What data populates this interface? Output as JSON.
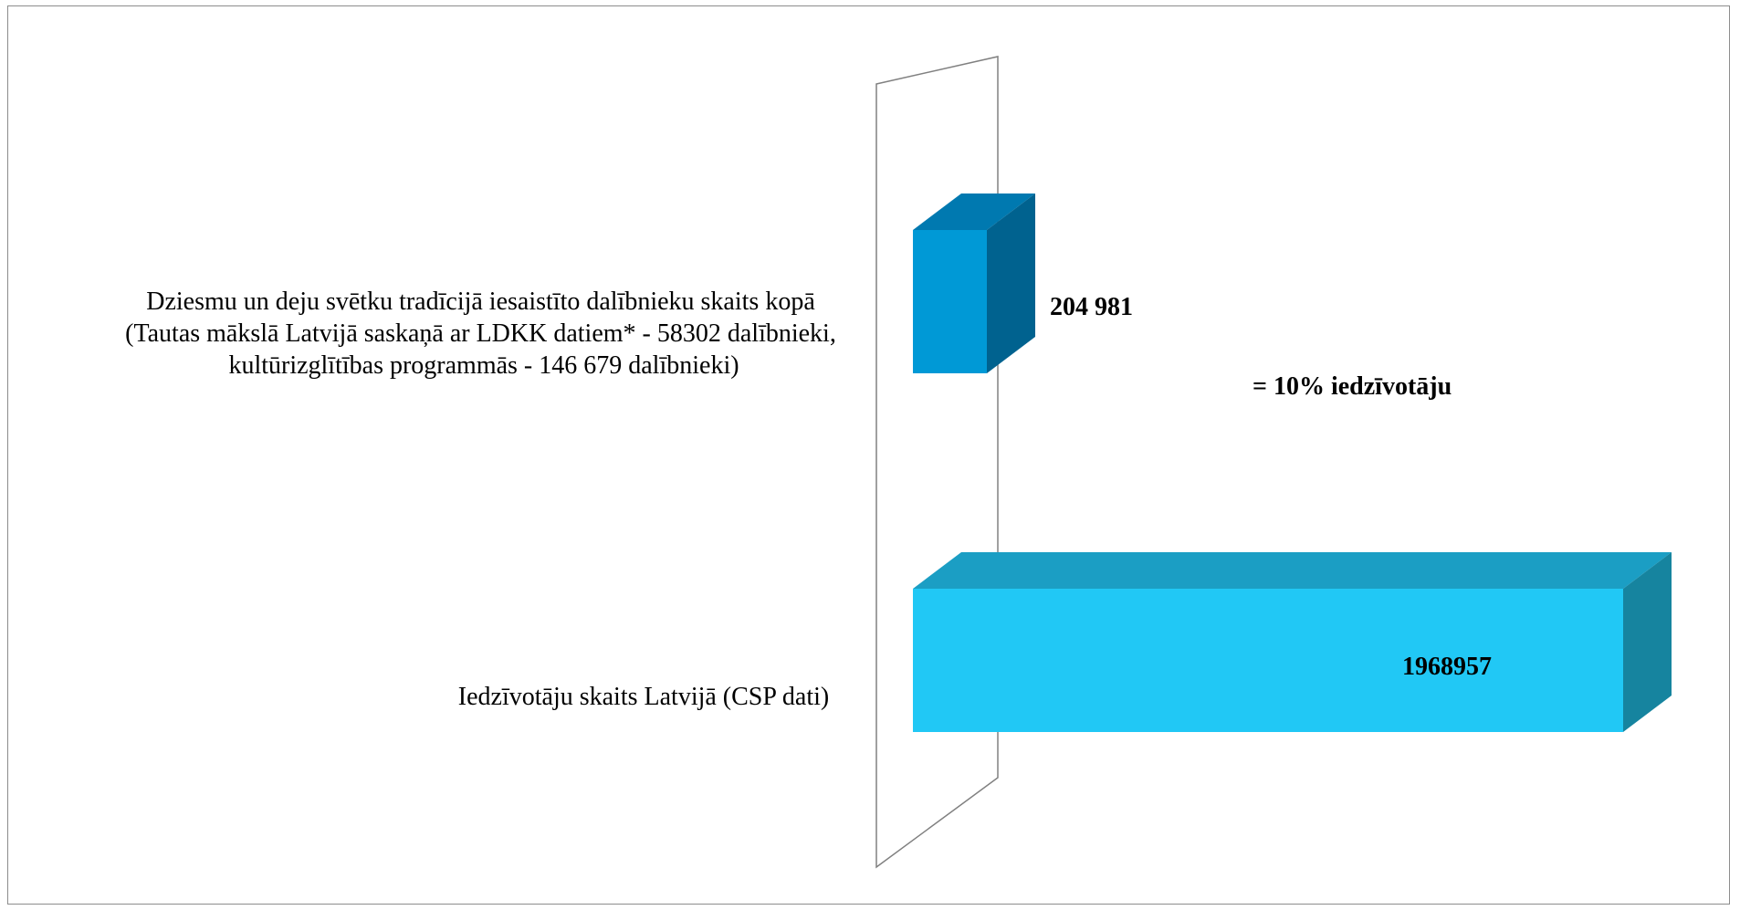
{
  "chart_data": {
    "type": "bar",
    "orientation": "horizontal",
    "three_d": true,
    "grid": false,
    "legend": "none",
    "categories": [
      "Dziesmu un deju svētku tradīcijā iesaistīto dalībnieku skaits kopā (Tautas mākslā Latvijā saskaņā ar LDKK datiem* - 58302 dalībnieki, kultūrizglītības programmās - 146 679 dalībnieki)",
      "Iedzīvotāju skaits Latvijā (CSP dati)"
    ],
    "category_label_lines": [
      [
        "Dziesmu un deju svētku tradīcijā iesaistīto dalībnieku skaits kopā",
        "(Tautas mākslā Latvijā saskaņā ar LDKK datiem*  - 58302 dalībnieki,",
        "kultūrizglītības programmās - 146 679 dalībnieki)"
      ],
      [
        "Iedzīvotāju skaits Latvijā (CSP dati)"
      ]
    ],
    "values": [
      204981,
      1968957
    ],
    "data_labels": [
      "204 981",
      "1968957"
    ],
    "xlim": [
      0,
      2000000
    ],
    "annotations": [
      "= 10% iedzīvotāju"
    ],
    "colors": {
      "bar1_front": "#0099d6",
      "bar1_top": "#0079b0",
      "bar1_side": "#00628f",
      "bar2_front": "#21c8f5",
      "bar2_top": "#1b9ec4",
      "bar2_side": "#16849f",
      "wall": "#808080"
    }
  }
}
